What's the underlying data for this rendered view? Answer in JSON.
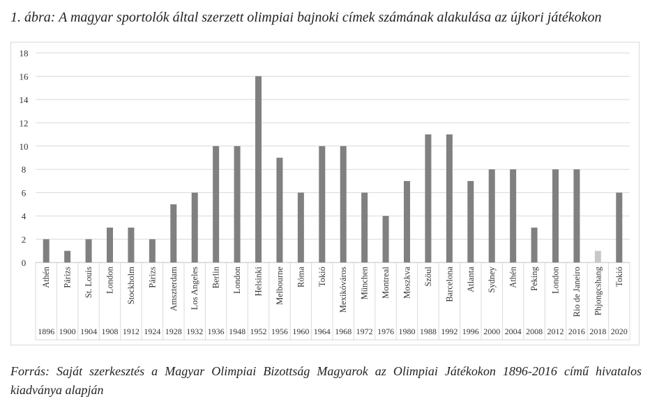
{
  "title": "1. ábra: A magyar sportolók által szerzett olimpiai bajnoki címek számának alakulása az újkori játékokon",
  "source": "Forrás: Saját szerkesztés a Magyar Olimpiai Bizottság Magyarok az Olimpiai Játékokon 1896-2016 című hivatalos kiadványa alapján",
  "chart_data": {
    "type": "bar",
    "ylim": [
      0,
      18
    ],
    "yticks": [
      0,
      2,
      4,
      6,
      8,
      10,
      12,
      14,
      16,
      18
    ],
    "grid": true,
    "legend": "none",
    "colors": {
      "bar": "#808080",
      "bar_winter": "#c8c8c8",
      "grid": "#d9d9d9"
    },
    "categories": [
      "Athén",
      "Párizs",
      "St. Louis",
      "London",
      "Stockholm",
      "Párizs",
      "Amszterdam",
      "Los Angeles",
      "Berlin",
      "London",
      "Helsinki",
      "Melbourne",
      "Róma",
      "Tokió",
      "Mexikóváros",
      "München",
      "Montreal",
      "Moszkva",
      "Szöul",
      "Barcelona",
      "Atlanta",
      "Sydney",
      "Athén",
      "Peking",
      "London",
      "Rio de Janeiro",
      "Phjongcshang",
      "Tokió"
    ],
    "years": [
      "1896",
      "1900",
      "1904",
      "1908",
      "1912",
      "1924",
      "1928",
      "1932",
      "1936",
      "1948",
      "1952",
      "1956",
      "1960",
      "1964",
      "1968",
      "1972",
      "1976",
      "1980",
      "1988",
      "1992",
      "1996",
      "2000",
      "2004",
      "2008",
      "2012",
      "2016",
      "2018",
      "2020"
    ],
    "values": [
      2,
      1,
      2,
      3,
      3,
      2,
      5,
      6,
      10,
      10,
      16,
      9,
      6,
      10,
      10,
      6,
      4,
      7,
      11,
      11,
      7,
      8,
      8,
      3,
      8,
      8,
      1,
      6
    ],
    "highlight_light": [
      "2018"
    ]
  }
}
